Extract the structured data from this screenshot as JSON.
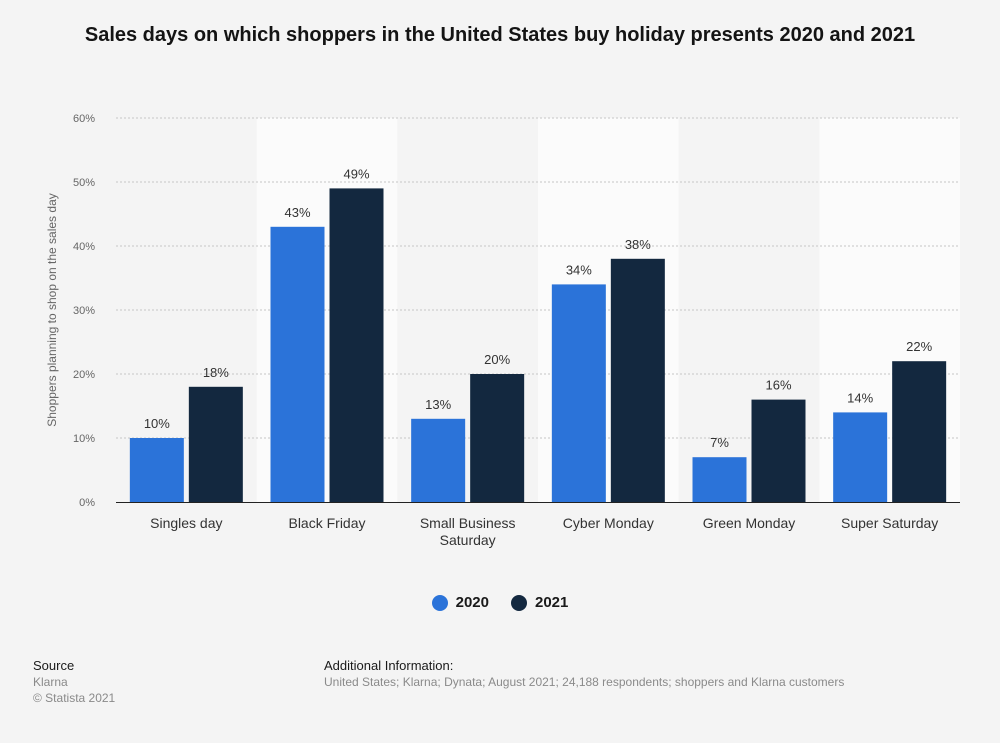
{
  "colors": {
    "series_2020": "#2b73d9",
    "series_2021": "#13283f",
    "grid": "#c6c6c6",
    "band": "#fbfbfb"
  },
  "chart_data": {
    "type": "bar",
    "title": "Sales days on which shoppers in the United States buy holiday presents 2020 and 2021",
    "xlabel": "",
    "ylabel": "Shoppers planning to shop on the sales day",
    "ylim": [
      0,
      60
    ],
    "yticks": [
      "0%",
      "10%",
      "20%",
      "30%",
      "40%",
      "50%",
      "60%"
    ],
    "categories": [
      "Singles day",
      "Black Friday",
      "Small Business Saturday",
      "Cyber Monday",
      "Green Monday",
      "Super Saturday"
    ],
    "series": [
      {
        "name": "2020",
        "values": [
          10,
          43,
          13,
          34,
          7,
          14
        ]
      },
      {
        "name": "2021",
        "values": [
          18,
          49,
          20,
          38,
          16,
          22
        ]
      }
    ],
    "grid": true,
    "legend": "bottom-center"
  },
  "footer": {
    "source_label": "Source",
    "source_lines": [
      "Klarna",
      "© Statista 2021"
    ],
    "info_label": "Additional Information:",
    "info_text": "United States; Klarna; Dynata; August 2021; 24,188 respondents; shoppers and Klarna customers"
  }
}
